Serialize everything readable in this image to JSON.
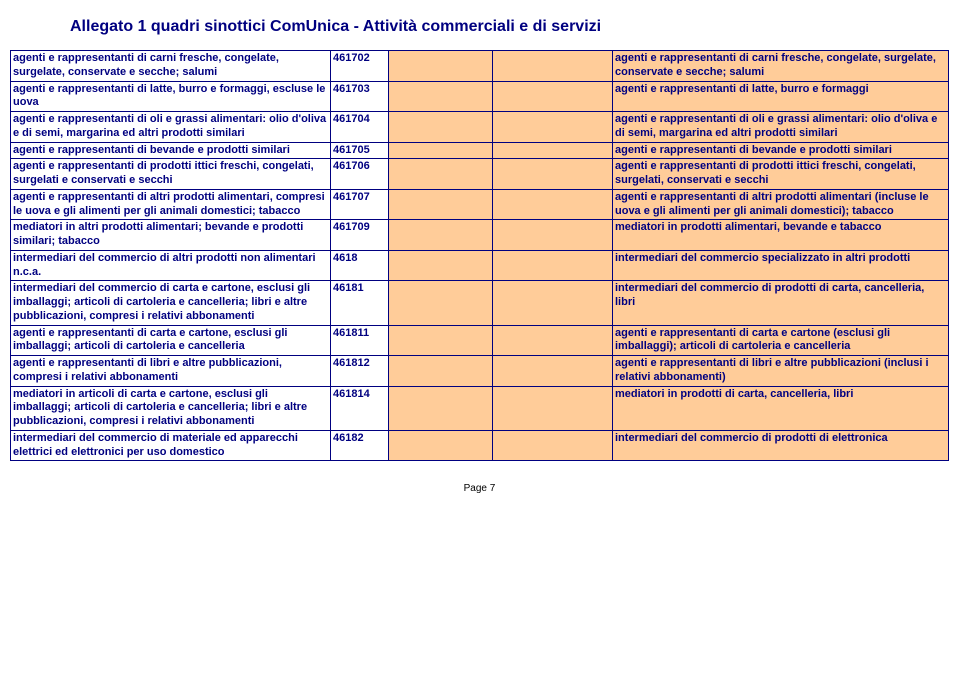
{
  "title": "Allegato 1 quadri sinottici ComUnica - Attività commerciali e di servizi",
  "footer": "Page 7",
  "rows": [
    {
      "col1": "agenti e rappresentanti di carni fresche, congelate, surgelate, conservate e secche; salumi",
      "col2": "461702",
      "col5": "agenti e rappresentanti di carni fresche, congelate, surgelate, conservate e secche; salumi"
    },
    {
      "col1": "agenti e rappresentanti di latte, burro e formaggi, escluse le uova",
      "col2": "461703",
      "col5": "agenti e rappresentanti di latte, burro e formaggi"
    },
    {
      "col1": "agenti e rappresentanti di oli e grassi alimentari: olio d'oliva e di semi, margarina ed altri prodotti similari",
      "col2": "461704",
      "col5": "agenti e rappresentanti di oli e grassi alimentari: olio d'oliva e di semi, margarina ed altri prodotti similari"
    },
    {
      "col1": "agenti e rappresentanti di bevande e prodotti similari",
      "col2": "461705",
      "col5": "agenti e rappresentanti di bevande e prodotti similari"
    },
    {
      "col1": "agenti e rappresentanti di prodotti ittici freschi, congelati, surgelati e conservati e secchi",
      "col2": "461706",
      "col5": "agenti e rappresentanti di prodotti ittici freschi, congelati, surgelati, conservati e secchi"
    },
    {
      "col1": "agenti e rappresentanti di altri prodotti alimentari, compresi le uova e gli alimenti per gli animali domestici; tabacco",
      "col2": "461707",
      "col5": "agenti e rappresentanti di altri prodotti alimentari (incluse le uova e gli alimenti per gli animali domestici); tabacco"
    },
    {
      "col1": "mediatori in altri prodotti alimentari; bevande e prodotti similari; tabacco",
      "col2": "461709",
      "col5": "mediatori in prodotti alimentari, bevande e tabacco"
    },
    {
      "col1": "intermediari del commercio di altri prodotti non alimentari n.c.a.",
      "col2": "4618",
      "col5": "intermediari del commercio specializzato in altri prodotti"
    },
    {
      "col1": "intermediari del commercio di carta e cartone, esclusi gli imballaggi; articoli di cartoleria e cancelleria; libri e altre pubblicazioni, compresi i relativi abbonamenti",
      "col2": "46181",
      "col5": "intermediari del commercio di prodotti di carta, cancelleria, libri"
    },
    {
      "col1": "agenti e rappresentanti di carta e cartone, esclusi gli imballaggi; articoli di cartoleria e cancelleria",
      "col2": "461811",
      "col5": "agenti e rappresentanti di carta e cartone (esclusi gli imballaggi); articoli di cartoleria e cancelleria"
    },
    {
      "col1": "agenti e rappresentanti di libri e altre pubblicazioni, compresi i relativi abbonamenti",
      "col2": "461812",
      "col5": "agenti e rappresentanti di libri e altre pubblicazioni (inclusi i relativi abbonamenti)"
    },
    {
      "col1": "mediatori in articoli di carta e cartone, esclusi gli imballaggi; articoli di cartoleria e cancelleria; libri e altre pubblicazioni, compresi i relativi abbonamenti",
      "col2": "461814",
      "col5": "mediatori in prodotti di carta, cancelleria, libri"
    },
    {
      "col1": "intermediari del commercio di materiale ed apparecchi elettrici ed elettronici per uso domestico",
      "col2": "46182",
      "col5": "intermediari del commercio di prodotti di elettronica"
    }
  ]
}
